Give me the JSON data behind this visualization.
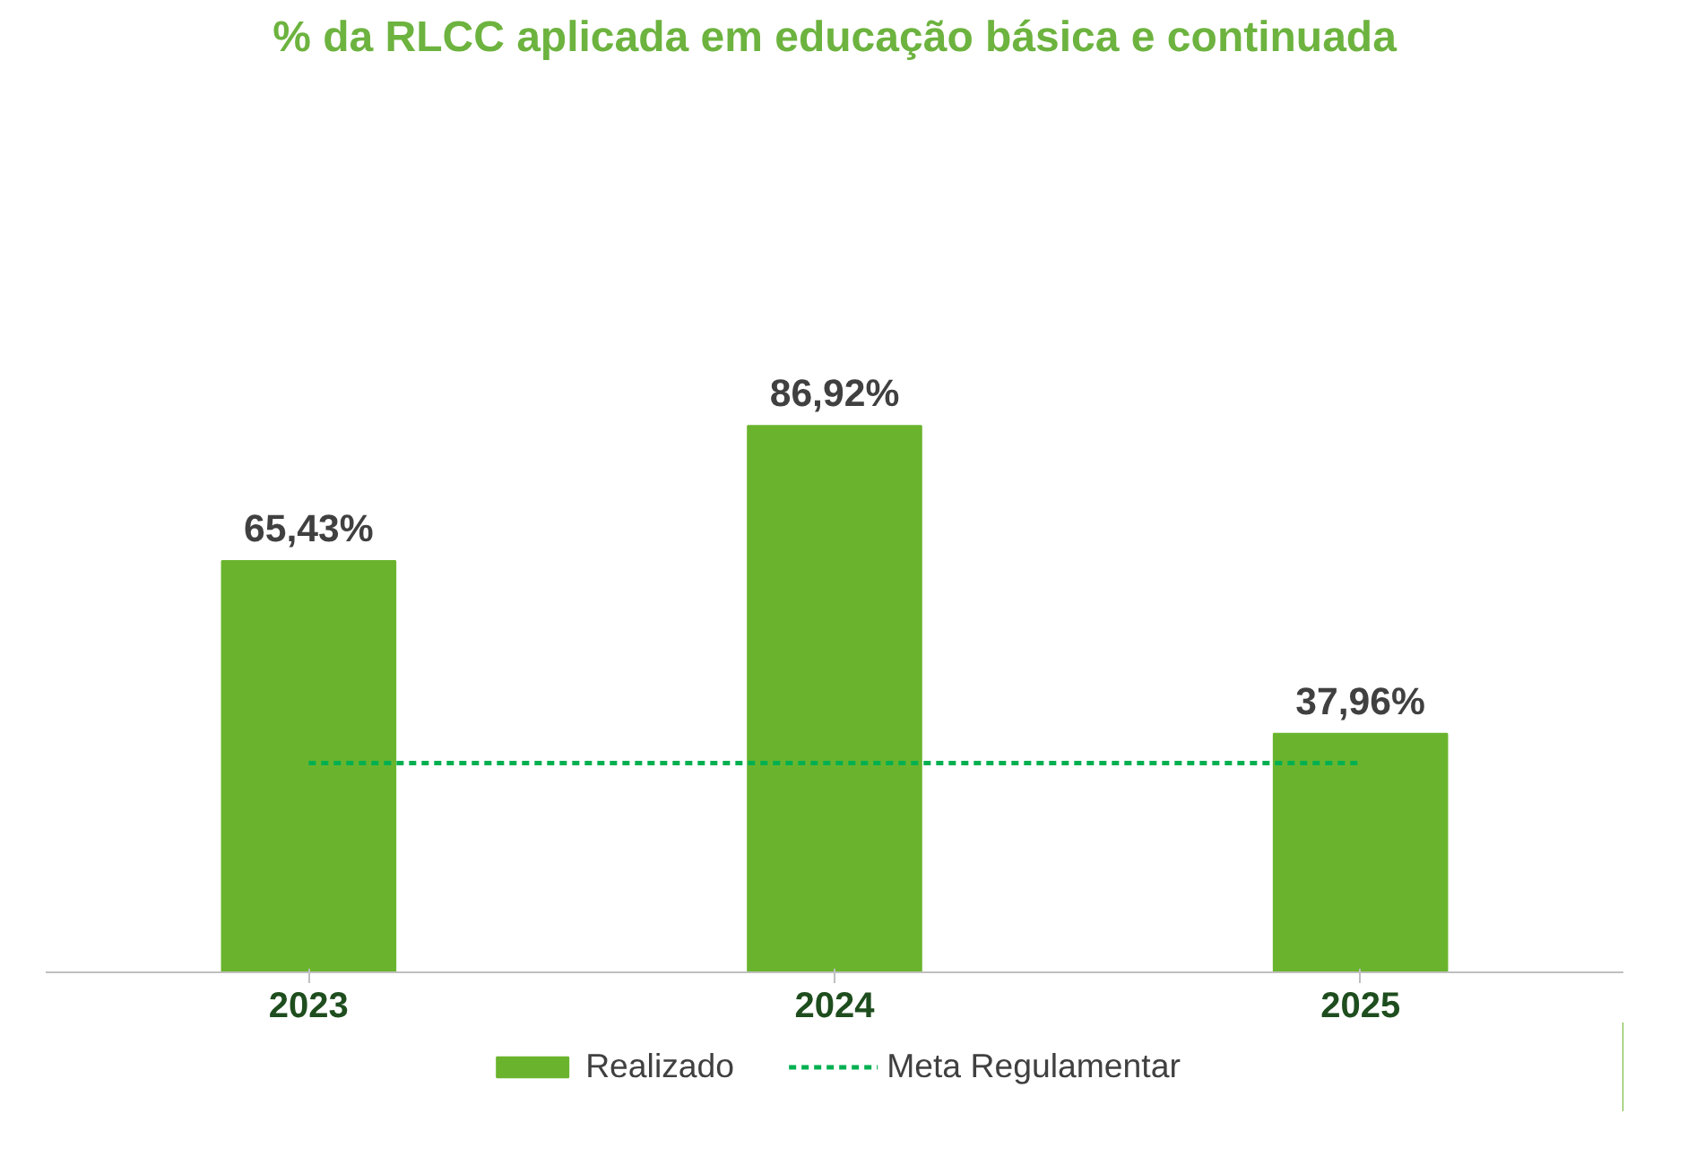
{
  "chart_data": {
    "type": "bar",
    "title": "% da RLCC aplicada em educação básica e continuada",
    "categories": [
      "2023",
      "2024",
      "2025"
    ],
    "series": [
      {
        "name": "Realizado",
        "type": "bar",
        "color": "#6ab42d",
        "values": [
          65.43,
          86.92,
          37.96
        ],
        "value_labels": [
          "65,43%",
          "86,92%",
          "37,96%"
        ]
      },
      {
        "name": "Meta Regulamentar",
        "type": "line",
        "color": "#00b050",
        "line_style": "dashed",
        "values": [
          33.3,
          33.3,
          33.3
        ]
      }
    ],
    "tick_labels": "x",
    "legend": "bottom"
  }
}
